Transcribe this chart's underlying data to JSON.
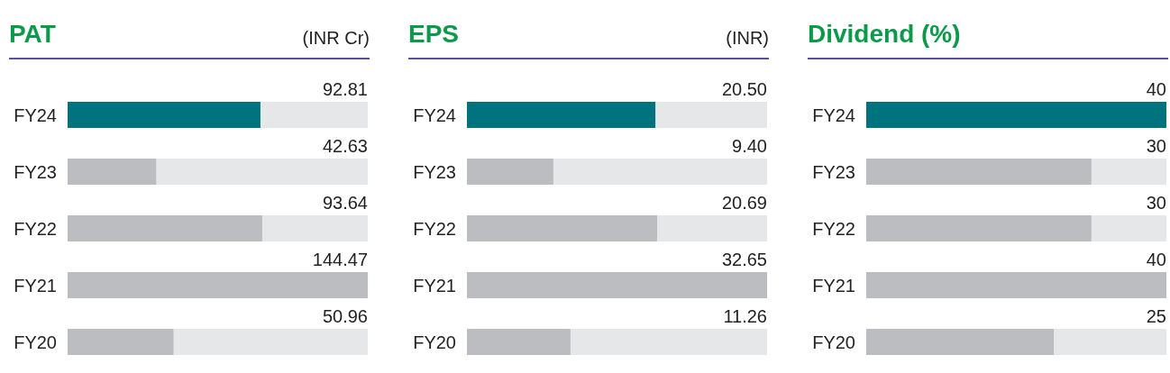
{
  "chart_data": [
    {
      "type": "bar",
      "orientation": "horizontal",
      "title": "PAT",
      "subtitle": "(INR Cr)",
      "categories": [
        "FY24",
        "FY23",
        "FY22",
        "FY21",
        "FY20"
      ],
      "values": [
        92.81,
        42.63,
        93.64,
        144.47,
        50.96
      ],
      "colors": [
        "#00737f",
        "#bcbdc0",
        "#bcbdc0",
        "#bcbdc0",
        "#bcbdc0"
      ],
      "value_labels": [
        "92.81",
        "42.63",
        "93.64",
        "144.47",
        "50.96"
      ]
    },
    {
      "type": "bar",
      "orientation": "horizontal",
      "title": "EPS",
      "subtitle": "(INR)",
      "categories": [
        "FY24",
        "FY23",
        "FY22",
        "FY21",
        "FY20"
      ],
      "values": [
        20.5,
        9.4,
        20.69,
        32.65,
        11.26
      ],
      "colors": [
        "#00737f",
        "#bcbdc0",
        "#bcbdc0",
        "#bcbdc0",
        "#bcbdc0"
      ],
      "value_labels": [
        "20.50",
        "9.40",
        "20.69",
        "32.65",
        "11.26"
      ]
    },
    {
      "type": "bar",
      "orientation": "horizontal",
      "title": "Dividend (%)",
      "categories": [
        "FY24",
        "FY23",
        "FY22",
        "FY21",
        "FY20"
      ],
      "values": [
        40,
        30,
        30,
        40,
        25
      ],
      "colors": [
        "#00737f",
        "#bcbdc0",
        "#bcbdc0",
        "#bcbdc0",
        "#bcbdc0"
      ],
      "data_labels": true
    }
  ]
}
